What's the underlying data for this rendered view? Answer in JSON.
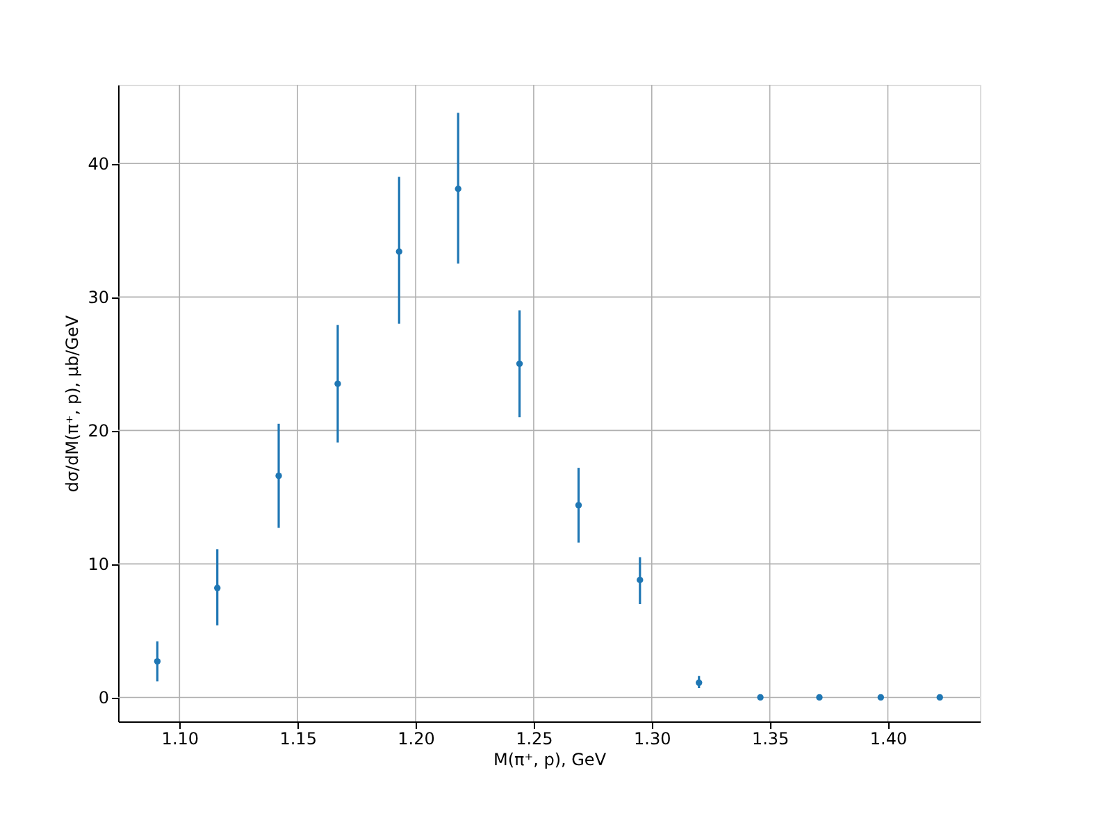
{
  "chart_data": {
    "type": "scatter",
    "xlabel": "M(π⁺, p), GeV",
    "ylabel": "dσ/dM(π⁺, p), μb/GeV",
    "x": [
      1.0906,
      1.116,
      1.142,
      1.167,
      1.193,
      1.218,
      1.244,
      1.269,
      1.295,
      1.32,
      1.346,
      1.371,
      1.397,
      1.422
    ],
    "series": [
      {
        "color": "#1f77b4",
        "values": [
          2.7,
          8.2,
          16.6,
          23.5,
          33.4,
          38.1,
          25.0,
          14.4,
          8.8,
          1.1,
          0,
          0,
          0,
          0
        ],
        "errors": [
          [
            1.2,
            4.2
          ],
          [
            5.4,
            11.1
          ],
          [
            12.7,
            20.5
          ],
          [
            19.1,
            27.9
          ],
          [
            28.0,
            39.0
          ],
          [
            32.5,
            43.8
          ],
          [
            21.0,
            29.0
          ],
          [
            11.6,
            17.2
          ],
          [
            7.0,
            10.5
          ],
          [
            0.7,
            1.6
          ],
          null,
          null,
          null,
          null
        ]
      }
    ],
    "marker": "circle",
    "grid": true,
    "xlim": [
      1.074,
      1.439
    ],
    "ylim": [
      -1.8,
      45.9
    ],
    "xticks": [
      {
        "value": 1.1,
        "label": "1.10"
      },
      {
        "value": 1.15,
        "label": "1.15"
      },
      {
        "value": 1.2,
        "label": "1.20"
      },
      {
        "value": 1.25,
        "label": "1.25"
      },
      {
        "value": 1.3,
        "label": "1.30"
      },
      {
        "value": 1.35,
        "label": "1.35"
      },
      {
        "value": 1.4,
        "label": "1.40"
      }
    ],
    "yticks": [
      0,
      10,
      20,
      30,
      40
    ]
  }
}
